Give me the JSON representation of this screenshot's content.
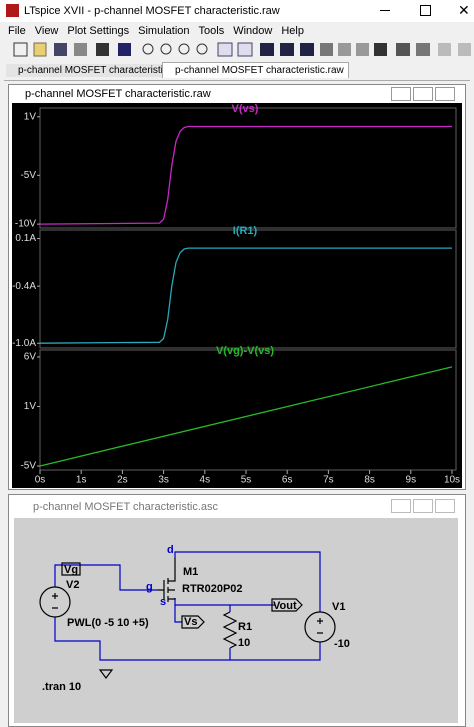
{
  "window": {
    "title": "LTspice XVII - p-channel MOSFET characteristic.raw"
  },
  "menu": [
    "File",
    "View",
    "Plot Settings",
    "Simulation",
    "Tools",
    "Window",
    "Help"
  ],
  "tabs": [
    "p-channel MOSFET characteristic.asc",
    "p-channel MOSFET characteristic.raw"
  ],
  "waveform": {
    "title": "p-channel MOSFET characteristic.raw",
    "xlim": [
      0,
      10
    ],
    "xticks": [
      {
        "value": 0,
        "label": "0s"
      },
      {
        "value": 1,
        "label": "1s"
      },
      {
        "value": 2,
        "label": "2s"
      },
      {
        "value": 3,
        "label": "3s"
      },
      {
        "value": 4,
        "label": "4s"
      },
      {
        "value": 5,
        "label": "5s"
      },
      {
        "value": 6,
        "label": "6s"
      },
      {
        "value": 7,
        "label": "7s"
      },
      {
        "value": 8,
        "label": "8s"
      },
      {
        "value": 9,
        "label": "9s"
      },
      {
        "value": 10,
        "label": "10s"
      }
    ],
    "panes": [
      {
        "trace": "V(vs)",
        "color": "#c828c8",
        "ylim": [
          -10.4,
          1.9
        ],
        "yticks": [
          {
            "value": 1,
            "label": "1V"
          },
          {
            "value": -5,
            "label": "-5V"
          },
          {
            "value": -10,
            "label": "-10V"
          }
        ],
        "x": [
          0,
          2.9,
          3.0,
          3.1,
          3.2,
          3.3,
          3.4,
          3.5,
          3.6,
          10
        ],
        "values": [
          -10,
          -9.9,
          -9.5,
          -7.5,
          -4,
          -1.5,
          -0.5,
          -0.1,
          0,
          0
        ]
      },
      {
        "trace": "I(R1)",
        "color": "#28a8b8",
        "ylim": [
          -1.05,
          0.19
        ],
        "yticks": [
          {
            "value": 0.1,
            "label": "0.1A"
          },
          {
            "value": -0.4,
            "label": "-0.4A"
          },
          {
            "value": -1.0,
            "label": "-1.0A"
          }
        ],
        "x": [
          0,
          2.9,
          3.0,
          3.1,
          3.2,
          3.3,
          3.4,
          3.5,
          3.6,
          10
        ],
        "values": [
          -1,
          -0.99,
          -0.95,
          -0.75,
          -0.4,
          -0.15,
          -0.05,
          -0.01,
          0,
          0
        ]
      },
      {
        "trace": "V(vg)-V(vs)",
        "color": "#28b828",
        "ylim": [
          -5.4,
          6.7
        ],
        "yticks": [
          {
            "value": 6,
            "label": "6V"
          },
          {
            "value": 1,
            "label": "1V"
          },
          {
            "value": -5,
            "label": "-5V"
          }
        ],
        "x": [
          0,
          10
        ],
        "values": [
          -5,
          5
        ]
      }
    ]
  },
  "schematic": {
    "title": "p-channel MOSFET characteristic.asc",
    "labels": [
      "Vg",
      "V2",
      "g",
      "d",
      "s",
      "M1",
      "RTR020P02",
      "Vout",
      "V1",
      "Vs",
      "R1",
      "10",
      "PWL(0 -5 10 +5)",
      "-10",
      ".tran 10"
    ]
  }
}
